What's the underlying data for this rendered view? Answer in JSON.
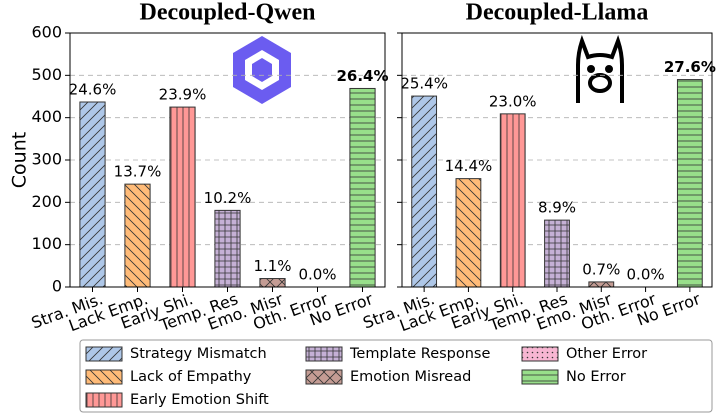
{
  "chart_data": [
    {
      "type": "bar",
      "title": "Decoupled-Qwen",
      "ylabel": "Count",
      "categories": [
        "Stra. Mis.",
        "Lack Emp.",
        "Early Shi.",
        "Temp. Res",
        "Emo. Misr",
        "Oth. Error",
        "No Error"
      ],
      "values": [
        437,
        243,
        425,
        181,
        20,
        0,
        469
      ],
      "percent_labels": [
        "24.6%",
        "13.7%",
        "23.9%",
        "10.2%",
        "1.1%",
        "0.0%",
        "26.4%"
      ],
      "colors": [
        "#aec7e8",
        "#ffbb78",
        "#ff9896",
        "#c5b0d5",
        "#c49c94",
        "#f7b6d2",
        "#98df8a"
      ],
      "hatches": [
        "/",
        "\\",
        "|",
        "+",
        "x",
        ".",
        "-"
      ],
      "ylim": [
        0,
        600
      ],
      "yticks": [
        0,
        100,
        200,
        300,
        400,
        500,
        600
      ],
      "grid": true,
      "show_ytick_labels": true
    },
    {
      "type": "bar",
      "title": "Decoupled-Llama",
      "categories": [
        "Stra. Mis.",
        "Lack Emp.",
        "Early Shi.",
        "Temp. Res",
        "Emo. Misr",
        "Oth. Error",
        "No Error"
      ],
      "values": [
        451,
        256,
        409,
        158,
        12,
        0,
        490
      ],
      "percent_labels": [
        "25.4%",
        "14.4%",
        "23.0%",
        "8.9%",
        "0.7%",
        "0.0%",
        "27.6%"
      ],
      "colors": [
        "#aec7e8",
        "#ffbb78",
        "#ff9896",
        "#c5b0d5",
        "#c49c94",
        "#f7b6d2",
        "#98df8a"
      ],
      "hatches": [
        "/",
        "\\",
        "|",
        "+",
        "x",
        ".",
        "-"
      ],
      "ylim": [
        0,
        600
      ],
      "yticks": [
        0,
        100,
        200,
        300,
        400,
        500,
        600
      ],
      "grid": true,
      "show_ytick_labels": false
    }
  ],
  "legend": [
    "Strategy Mismatch",
    "Lack of Empathy",
    "Early Emotion Shift",
    "Template Response",
    "Emotion Misread",
    "Other Error",
    "No Error"
  ]
}
